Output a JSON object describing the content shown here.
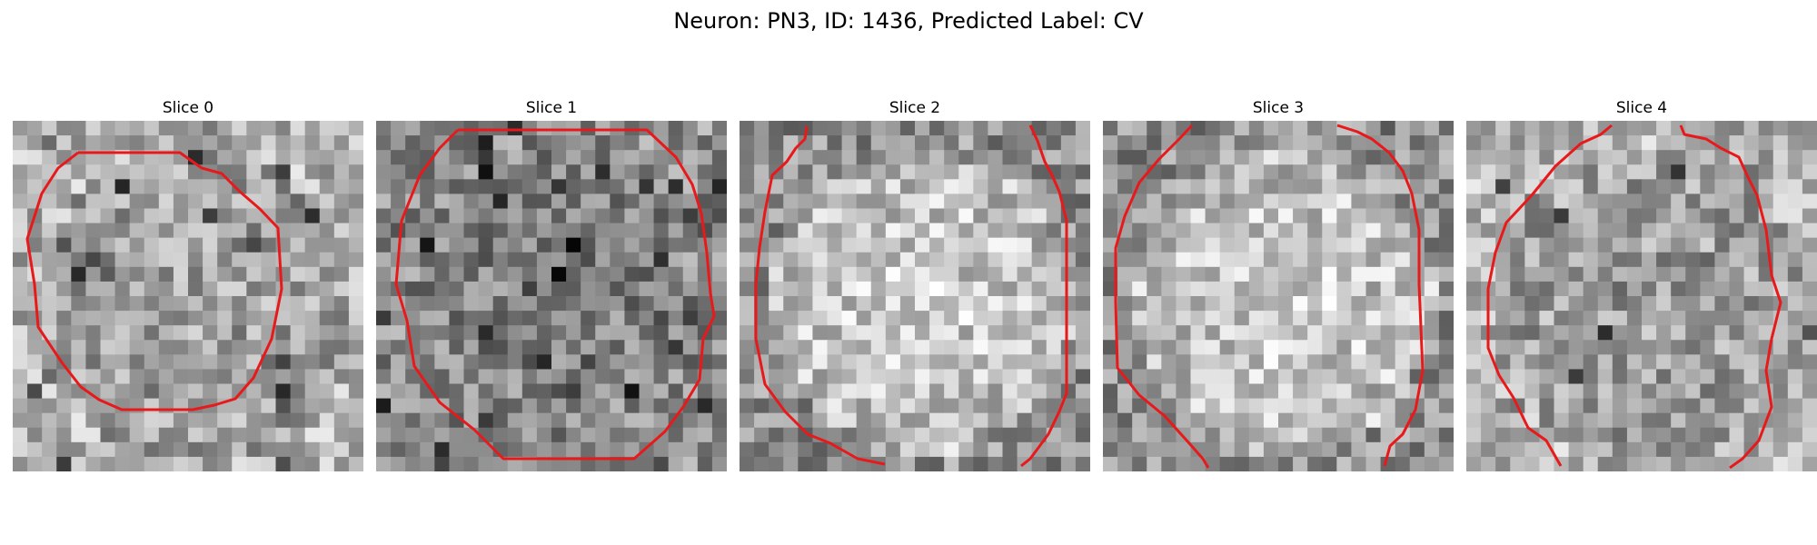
{
  "figure": {
    "title": "Neuron: PN3, ID: 1436, Predicted Label: CV"
  },
  "panels": [
    {
      "title": "Slice 0",
      "tone": "mixed",
      "seed": 11
    },
    {
      "title": "Slice 1",
      "tone": "dark",
      "seed": 23
    },
    {
      "title": "Slice 2",
      "tone": "light",
      "seed": 37
    },
    {
      "title": "Slice 3",
      "tone": "light",
      "seed": 41
    },
    {
      "title": "Slice 4",
      "tone": "mixed",
      "seed": 53
    }
  ],
  "colors": {
    "contour": "#e8191b",
    "background": "#ffffff"
  },
  "image": {
    "grid_cells": 24,
    "colormap": "grayscale"
  }
}
